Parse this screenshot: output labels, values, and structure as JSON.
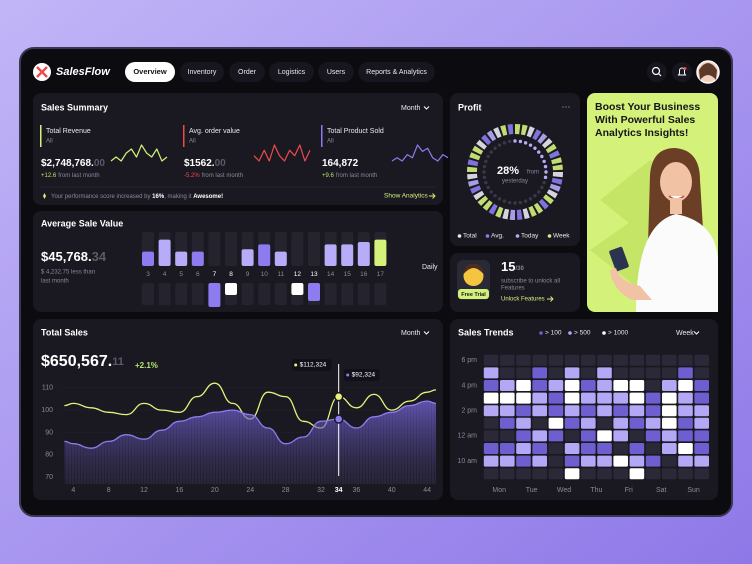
{
  "header": {
    "logo": "SalesFlow",
    "nav": [
      "Overview",
      "Inventory",
      "Order",
      "Logistics",
      "Users",
      "Reports & Analytics"
    ]
  },
  "sales_summary": {
    "title": "Sales Summary",
    "period": "Month",
    "metrics": [
      {
        "label": "Total Revenue",
        "sub": "All",
        "value": "$2,748,768.",
        "value_faded": "00",
        "change": "+12.6",
        "change_text": "from last month",
        "color": "#d4f27a",
        "spark": [
          5,
          6,
          5,
          7,
          8,
          6,
          9,
          7,
          6,
          8,
          5,
          6
        ]
      },
      {
        "label": "Avg. order value",
        "sub": "All",
        "value": "$1562.",
        "value_faded": "00",
        "change": "-5.2%",
        "change_text": "from last month",
        "color": "#f04a4a",
        "spark": [
          6,
          5,
          7,
          5,
          8,
          6,
          5,
          7,
          6,
          8,
          5,
          7
        ]
      },
      {
        "label": "Total Product Sold",
        "sub": "All",
        "value": "164,872",
        "value_faded": "",
        "change": "+9.6",
        "change_text": "from last month",
        "color": "#8c7cf0",
        "spark": [
          4,
          5,
          4,
          6,
          5,
          9,
          7,
          8,
          5,
          4,
          6,
          5
        ]
      }
    ],
    "footer": [
      "Your performance score increased by ",
      "16%",
      ", making it ",
      "Awesome!"
    ],
    "link": "Show Analytics"
  },
  "profit": {
    "title": "Profit",
    "value": 28,
    "value_label": "28%",
    "sub": [
      "from",
      "yesterday"
    ],
    "legend": [
      {
        "label": "Total",
        "color": "#e9e9ee"
      },
      {
        "label": "Avg.",
        "color": "#8c7cf0"
      },
      {
        "label": "Today",
        "color": "#b6acf7"
      },
      {
        "label": "Week",
        "color": "#d4f27a"
      }
    ]
  },
  "promo": {
    "lines": [
      "Boost Your Business",
      "With Powerful Sales",
      "Analytics Insights!"
    ]
  },
  "avg_sale": {
    "title": "Average Sale Value",
    "value": "$45,768.",
    "value_faded": "34",
    "note": [
      "$ 4,232.75 less than",
      "last month"
    ],
    "period": "Daily",
    "chart": {
      "type": "bar",
      "categories": [
        "3",
        "4",
        "5",
        "6",
        "7",
        "8",
        "9",
        "10",
        "11",
        "12",
        "13",
        "14",
        "15",
        "16",
        "17"
      ],
      "values": [
        12,
        22,
        12,
        12,
        -20,
        -10,
        14,
        18,
        12,
        -10,
        -15,
        18,
        18,
        20,
        22
      ],
      "colors": [
        "#8c7cf0",
        "#b6acf7",
        "#b6acf7",
        "#8c7cf0",
        "#8c7cf0",
        "#ffffff",
        "#b6acf7",
        "#8c7cf0",
        "#b6acf7",
        "#ffffff",
        "#8c7cf0",
        "#b6acf7",
        "#b6acf7",
        "#b6acf7",
        "#d4f27a"
      ]
    }
  },
  "trial": {
    "days": "15",
    "total": "/30",
    "text": [
      "subscribe to unlock all",
      "Features"
    ],
    "badge": "Free Trial",
    "link": "Unlock Features"
  },
  "total_sales": {
    "title": "Total Sales",
    "value": "$650,567.",
    "value_faded": "11",
    "change": "+2.1%",
    "period": "Month",
    "chart": {
      "type": "line",
      "x": [
        3,
        4,
        6,
        8,
        10,
        12,
        14,
        16,
        18,
        20,
        22,
        24,
        26,
        28,
        30,
        32,
        34,
        36,
        38,
        40,
        42,
        44,
        45
      ],
      "series": [
        {
          "color": "#e6f27a",
          "values": [
            102,
            103,
            101,
            99,
            98,
            103,
            100,
            99,
            106,
            112,
            103,
            96,
            108,
            106,
            95,
            92,
            106,
            101,
            107,
            100,
            104,
            108,
            109
          ]
        },
        {
          "color": "#8c7cf0",
          "values": [
            86,
            85,
            83,
            86,
            89,
            87,
            91,
            95,
            97,
            99,
            100,
            98,
            92,
            85,
            88,
            95,
            96,
            92,
            97,
            99,
            102,
            104,
            103
          ]
        }
      ],
      "xlim": [
        2.5,
        45
      ],
      "ylim": [
        67,
        117
      ],
      "xticks": [
        4,
        8,
        12,
        16,
        20,
        24,
        28,
        32,
        34,
        36,
        40,
        44
      ],
      "yticks": [
        70,
        80,
        90,
        100,
        110
      ],
      "highlight_x": 34,
      "annotations": [
        "$112,324",
        "$92,324"
      ]
    }
  },
  "sales_trends": {
    "title": "Sales Trends",
    "period": "Week",
    "legend": [
      {
        "value": 100,
        "label": "> 100",
        "color": "#6d5fcf"
      },
      {
        "value": 500,
        "label": "> 500",
        "color": "#b3a8f6"
      },
      {
        "value": 1000,
        "label": "> 1000",
        "color": "#ffffff"
      }
    ],
    "chart": {
      "type": "heatmap",
      "rows": [
        "6 pm",
        null,
        "4 pm",
        null,
        "2 pm",
        null,
        "12 am",
        null,
        "10 am",
        null
      ],
      "days": [
        "Mon",
        "Tue",
        "Wed",
        "Thu",
        "Fri",
        "Sat",
        "Sun"
      ],
      "values": [
        [
          0,
          0,
          0,
          0,
          0,
          0,
          0,
          0,
          0,
          0,
          0,
          0,
          0,
          0
        ],
        [
          600,
          0,
          0,
          150,
          0,
          600,
          0,
          600,
          0,
          0,
          0,
          0,
          150,
          0
        ],
        [
          150,
          600,
          1200,
          150,
          600,
          1200,
          150,
          600,
          1200,
          1200,
          0,
          600,
          1200,
          150
        ],
        [
          1200,
          1200,
          1200,
          600,
          150,
          1200,
          600,
          600,
          600,
          1200,
          150,
          1200,
          600,
          150
        ],
        [
          600,
          600,
          150,
          600,
          150,
          600,
          150,
          600,
          150,
          600,
          150,
          1200,
          600,
          600
        ],
        [
          0,
          150,
          600,
          0,
          1200,
          150,
          600,
          0,
          600,
          150,
          600,
          1200,
          150,
          600
        ],
        [
          0,
          0,
          150,
          600,
          150,
          0,
          150,
          1200,
          600,
          0,
          150,
          600,
          150,
          150
        ],
        [
          150,
          150,
          600,
          150,
          0,
          600,
          150,
          150,
          0,
          150,
          0,
          600,
          1200,
          150
        ],
        [
          600,
          600,
          150,
          600,
          0,
          150,
          600,
          600,
          1200,
          600,
          150,
          0,
          600,
          600
        ],
        [
          0,
          0,
          0,
          0,
          0,
          1200,
          0,
          0,
          0,
          1200,
          0,
          0,
          0,
          0
        ]
      ]
    }
  }
}
